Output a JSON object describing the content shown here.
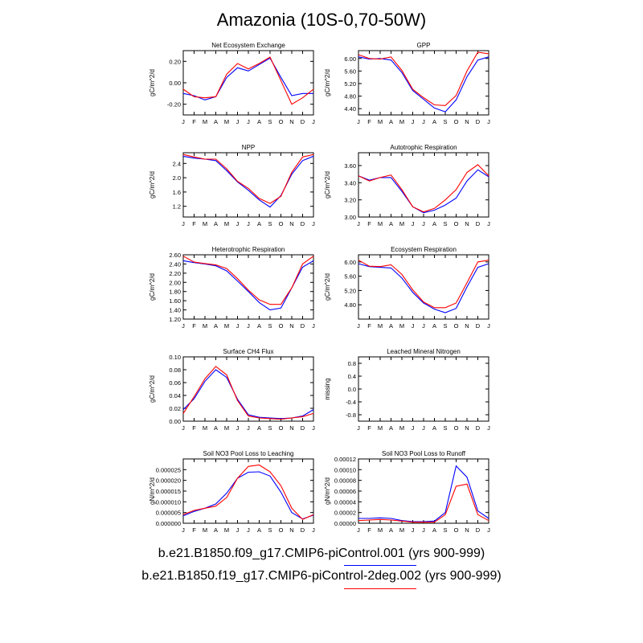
{
  "title": "Amazonia (10S-0,70-50W)",
  "months": [
    "J",
    "F",
    "M",
    "A",
    "M",
    "J",
    "J",
    "A",
    "S",
    "O",
    "N",
    "D",
    "J"
  ],
  "series_colors": [
    "#0000ff",
    "#ff0000"
  ],
  "legend": [
    {
      "label": "b.e21.B1850.f09_g17.CMIP6-piControl.001 (yrs 900-999)",
      "color": "#0000ff"
    },
    {
      "label": "b.e21.B1850.f19_g17.CMIP6-piControl-2deg.002 (yrs 900-999)",
      "color": "#ff0000"
    }
  ],
  "chart_data": [
    {
      "type": "line",
      "title": "Net Ecosystem Exchange",
      "ylabel": "gC/m^2/d",
      "ylim": [
        -0.3,
        0.3
      ],
      "yticks": [
        -0.2,
        0.0,
        0.2
      ],
      "yticklabels": [
        "-0.20",
        "0.00",
        "0.20"
      ],
      "x": [
        "J",
        "F",
        "M",
        "A",
        "M",
        "J",
        "J",
        "A",
        "S",
        "O",
        "N",
        "D",
        "J"
      ],
      "series": [
        {
          "values": [
            -0.1,
            -0.12,
            -0.16,
            -0.13,
            0.05,
            0.14,
            0.11,
            0.17,
            0.23,
            0.05,
            -0.12,
            -0.1,
            -0.1
          ]
        },
        {
          "values": [
            -0.06,
            -0.13,
            -0.14,
            -0.13,
            0.08,
            0.18,
            0.13,
            0.18,
            0.24,
            0.02,
            -0.2,
            -0.14,
            -0.06
          ]
        }
      ]
    },
    {
      "type": "line",
      "title": "GPP",
      "ylabel": "gC/m^2/d",
      "ylim": [
        4.2,
        6.25
      ],
      "yticks": [
        4.4,
        4.8,
        5.2,
        5.6,
        6.0
      ],
      "yticklabels": [
        "4.40",
        "4.80",
        "5.20",
        "5.60",
        "6.00"
      ],
      "x": [
        "J",
        "F",
        "M",
        "A",
        "M",
        "J",
        "J",
        "A",
        "S",
        "O",
        "N",
        "D",
        "J"
      ],
      "series": [
        {
          "values": [
            6.05,
            5.98,
            6.0,
            5.95,
            5.55,
            4.98,
            4.7,
            4.42,
            4.3,
            4.68,
            5.42,
            5.95,
            6.05
          ]
        },
        {
          "values": [
            6.12,
            6.0,
            5.98,
            6.05,
            5.62,
            5.02,
            4.75,
            4.52,
            4.5,
            4.82,
            5.6,
            6.2,
            6.15
          ]
        }
      ]
    },
    {
      "type": "line",
      "title": "NPP",
      "ylabel": "gC/m^2/d",
      "ylim": [
        0.9,
        2.7
      ],
      "yticks": [
        1.2,
        1.6,
        2.0,
        2.4
      ],
      "yticklabels": [
        "1.2",
        "1.6",
        "2.0",
        "2.4"
      ],
      "x": [
        "J",
        "F",
        "M",
        "A",
        "M",
        "J",
        "J",
        "A",
        "S",
        "O",
        "N",
        "D",
        "J"
      ],
      "series": [
        {
          "values": [
            2.6,
            2.55,
            2.52,
            2.48,
            2.2,
            1.88,
            1.65,
            1.38,
            1.18,
            1.5,
            2.1,
            2.48,
            2.6
          ]
        },
        {
          "values": [
            2.65,
            2.58,
            2.52,
            2.52,
            2.25,
            1.9,
            1.7,
            1.42,
            1.28,
            1.48,
            2.15,
            2.58,
            2.65
          ]
        }
      ]
    },
    {
      "type": "line",
      "title": "Autotrophic Respiration",
      "ylabel": "gC/m^2/d",
      "ylim": [
        3.0,
        3.75
      ],
      "yticks": [
        3.0,
        3.2,
        3.4,
        3.6
      ],
      "yticklabels": [
        "3.00",
        "3.20",
        "3.40",
        "3.60"
      ],
      "x": [
        "J",
        "F",
        "M",
        "A",
        "M",
        "J",
        "J",
        "A",
        "S",
        "O",
        "N",
        "D",
        "J"
      ],
      "series": [
        {
          "values": [
            3.48,
            3.43,
            3.46,
            3.46,
            3.3,
            3.12,
            3.05,
            3.08,
            3.14,
            3.22,
            3.42,
            3.55,
            3.47
          ]
        },
        {
          "values": [
            3.48,
            3.42,
            3.46,
            3.49,
            3.32,
            3.12,
            3.06,
            3.1,
            3.2,
            3.32,
            3.52,
            3.61,
            3.48
          ]
        }
      ]
    },
    {
      "type": "line",
      "title": "Heterotrophic Respiration",
      "ylabel": "gC/m^2/d",
      "ylim": [
        1.2,
        2.6
      ],
      "yticks": [
        1.2,
        1.4,
        1.6,
        1.8,
        2.0,
        2.2,
        2.4,
        2.6
      ],
      "yticklabels": [
        "1.20",
        "1.40",
        "1.60",
        "1.80",
        "2.00",
        "2.20",
        "2.40",
        "2.60"
      ],
      "x": [
        "J",
        "F",
        "M",
        "A",
        "M",
        "J",
        "J",
        "A",
        "S",
        "O",
        "N",
        "D",
        "J"
      ],
      "series": [
        {
          "values": [
            2.47,
            2.43,
            2.4,
            2.36,
            2.25,
            2.03,
            1.8,
            1.56,
            1.4,
            1.44,
            1.88,
            2.33,
            2.47
          ]
        },
        {
          "values": [
            2.57,
            2.44,
            2.41,
            2.38,
            2.3,
            2.08,
            1.83,
            1.62,
            1.52,
            1.52,
            1.88,
            2.4,
            2.57
          ]
        }
      ]
    },
    {
      "type": "line",
      "title": "Ecosystem Respiration",
      "ylabel": "gC/m^2/d",
      "ylim": [
        4.4,
        6.2
      ],
      "yticks": [
        4.8,
        5.2,
        5.6,
        6.0
      ],
      "yticklabels": [
        "4.80",
        "5.20",
        "5.60",
        "6.00"
      ],
      "x": [
        "J",
        "F",
        "M",
        "A",
        "M",
        "J",
        "J",
        "A",
        "S",
        "O",
        "N",
        "D",
        "J"
      ],
      "series": [
        {
          "values": [
            5.95,
            5.87,
            5.85,
            5.83,
            5.55,
            5.15,
            4.85,
            4.68,
            4.58,
            4.7,
            5.3,
            5.85,
            5.95
          ]
        },
        {
          "values": [
            6.05,
            5.88,
            5.87,
            5.92,
            5.65,
            5.22,
            4.88,
            4.72,
            4.72,
            4.85,
            5.42,
            6.0,
            6.05
          ]
        }
      ]
    },
    {
      "type": "line",
      "title": "Surface CH4 Flux",
      "ylabel": "gC/m^2/d",
      "ylim": [
        0.0,
        0.1
      ],
      "yticks": [
        0.0,
        0.02,
        0.04,
        0.06,
        0.08,
        0.1
      ],
      "yticklabels": [
        "0.00",
        "0.02",
        "0.04",
        "0.06",
        "0.08",
        "0.10"
      ],
      "x": [
        "J",
        "F",
        "M",
        "A",
        "M",
        "J",
        "J",
        "A",
        "S",
        "O",
        "N",
        "D",
        "J"
      ],
      "series": [
        {
          "values": [
            0.018,
            0.035,
            0.062,
            0.08,
            0.068,
            0.034,
            0.01,
            0.006,
            0.005,
            0.004,
            0.005,
            0.008,
            0.018
          ]
        },
        {
          "values": [
            0.012,
            0.038,
            0.066,
            0.085,
            0.072,
            0.032,
            0.008,
            0.005,
            0.004,
            0.003,
            0.005,
            0.007,
            0.012
          ]
        }
      ]
    },
    {
      "type": "line",
      "title": "Leached Mineral Nitrogen",
      "ylabel": "missing",
      "ylim": [
        -1.0,
        1.0
      ],
      "yticks": [
        -0.8,
        -0.4,
        0.0,
        0.4,
        0.8
      ],
      "yticklabels": [
        "-0.8",
        "-0.4",
        "0.0",
        "0.4",
        "0.8"
      ],
      "x": [
        "J",
        "F",
        "M",
        "A",
        "M",
        "J",
        "J",
        "A",
        "S",
        "O",
        "N",
        "D",
        "J"
      ],
      "series": []
    },
    {
      "type": "line",
      "title": "Soil NO3 Pool Loss to Leaching",
      "ylabel": "gN/m^2/d",
      "ylim": [
        0.0,
        3e-05
      ],
      "yticks": [
        0.0,
        5e-06,
        1e-05,
        1.5e-05,
        2e-05,
        2.5e-05
      ],
      "yticklabels": [
        "0.000000",
        "0.000005",
        "0.000010",
        "0.000015",
        "0.000020",
        "0.000025"
      ],
      "x": [
        "J",
        "F",
        "M",
        "A",
        "M",
        "J",
        "J",
        "A",
        "S",
        "O",
        "N",
        "D",
        "J"
      ],
      "series": [
        {
          "values": [
            3.5e-06,
            5.5e-06,
            7e-06,
            9e-06,
            1.4e-05,
            2.1e-05,
            2.38e-05,
            2.4e-05,
            2.2e-05,
            1.45e-05,
            5e-06,
            2e-06,
            3.8e-06
          ]
        },
        {
          "values": [
            4e-06,
            6e-06,
            7e-06,
            8e-06,
            1.2e-05,
            2.1e-05,
            2.65e-05,
            2.72e-05,
            2.4e-05,
            1.75e-05,
            7e-06,
            1.8e-06,
            4e-06
          ]
        }
      ]
    },
    {
      "type": "line",
      "title": "Soil NO3 Pool Loss to Runoff",
      "ylabel": "gN/m^2/d",
      "ylim": [
        0.0,
        0.00012
      ],
      "yticks": [
        0.0,
        2e-05,
        4e-05,
        6e-05,
        8e-05,
        0.0001,
        0.00012
      ],
      "yticklabels": [
        "0.00000",
        "0.00002",
        "0.00004",
        "0.00006",
        "0.00008",
        "0.00010",
        "0.00012"
      ],
      "x": [
        "J",
        "F",
        "M",
        "A",
        "M",
        "J",
        "J",
        "A",
        "S",
        "O",
        "N",
        "D",
        "J"
      ],
      "series": [
        {
          "values": [
            9e-06,
            9e-06,
            1e-05,
            9e-06,
            5e-06,
            3e-06,
            3e-06,
            4e-06,
            2e-05,
            0.000107,
            8.6e-05,
            2.3e-05,
            9e-06
          ]
        },
        {
          "values": [
            5e-06,
            6e-06,
            7e-06,
            6e-06,
            4e-06,
            2e-06,
            2e-06,
            2e-06,
            1.6e-05,
            6.9e-05,
            7.3e-05,
            1.6e-05,
            5e-06
          ]
        }
      ]
    }
  ]
}
